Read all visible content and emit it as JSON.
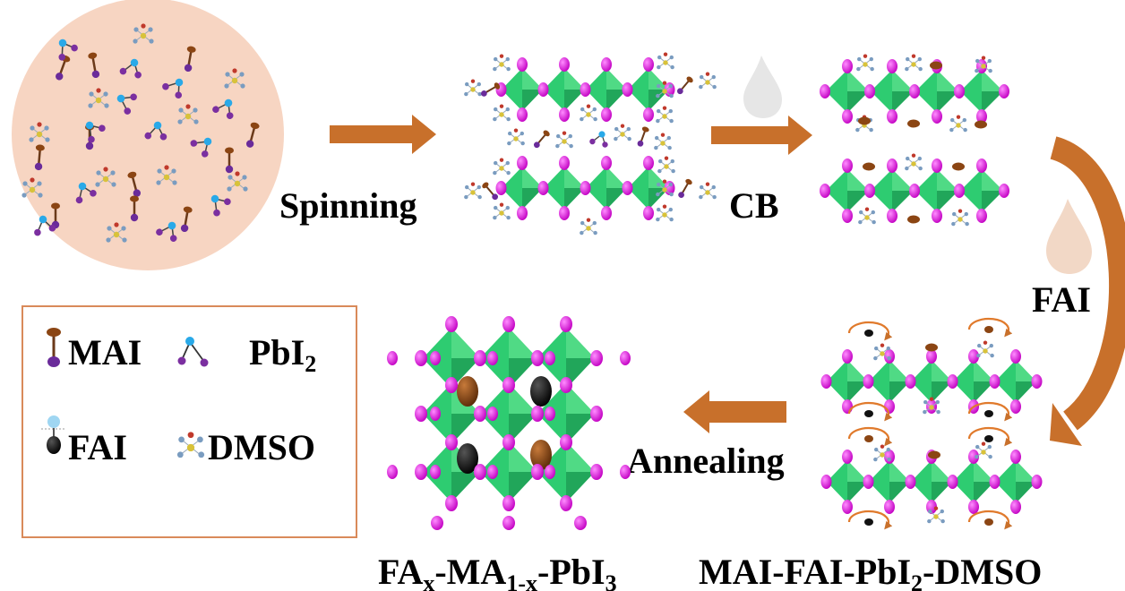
{
  "steps": {
    "spinning": "Spinning",
    "cb": "CB",
    "fai": "FAI",
    "annealing": "Annealing"
  },
  "products": {
    "intermediate": {
      "base": "MAI-FAI-PbI",
      "sub": "2",
      "tail": "-DMSO"
    },
    "final": {
      "fa": "FA",
      "fa_sub": "x",
      "ma": "-MA",
      "ma_sub": "1-x",
      "pb": "-PbI",
      "pb_sub": "3"
    }
  },
  "legend": {
    "mai": "MAI",
    "pbi2": {
      "base": "PbI",
      "sub": "2"
    },
    "fai": "FAI",
    "dmso": "DMSO"
  },
  "colors": {
    "octahedron": "#2ecc71",
    "octahedron_dark": "#1e9c55",
    "iodide": "#d61ad6",
    "mai": "#8b4513",
    "fai": "#111111",
    "pbi2_pb": "#29a9e8",
    "pbi2_i": "#7b2fa0",
    "dmso": "#7a9cc0",
    "arrow": "#c8702b",
    "solution": "#f7d5c2",
    "legend_border": "#d98a5a",
    "droplet_cb": "#e6e6e6",
    "droplet_fai": "#f2d8c6"
  }
}
